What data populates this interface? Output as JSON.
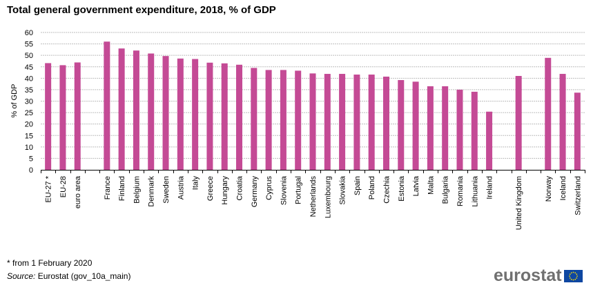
{
  "chart_data": {
    "type": "bar",
    "title": "Total general government expenditure, 2018, % of GDP",
    "xlabel": "",
    "ylabel": "% of GDP",
    "ylim": [
      0,
      60
    ],
    "yticks": [
      0,
      5,
      10,
      15,
      20,
      25,
      30,
      35,
      40,
      45,
      50,
      55,
      60
    ],
    "grid": true,
    "bar_color": "#C44A95",
    "categories": [
      "EU-27 *",
      "EU-28",
      "euro area",
      "",
      "France",
      "Finland",
      "Belgium",
      "Denmark",
      "Sweden",
      "Austria",
      "Italy",
      "Greece",
      "Hungary",
      "Croatia",
      "Germany",
      "Cyprus",
      "Slovenia",
      "Portugal",
      "Netherlands",
      "Luxembourg",
      "Slovakia",
      "Spain",
      "Poland",
      "Czechia",
      "Estonia",
      "Latvia",
      "Malta",
      "Bulgaria",
      "Romania",
      "Lithuania",
      "Ireland",
      "",
      "United Kingdom",
      "",
      "Norway",
      "Iceland",
      "Switzerland"
    ],
    "values": [
      46.6,
      45.7,
      46.9,
      null,
      56.0,
      53.0,
      52.1,
      50.8,
      49.7,
      48.6,
      48.4,
      46.8,
      46.5,
      45.9,
      44.5,
      43.6,
      43.6,
      43.3,
      42.1,
      41.9,
      41.9,
      41.6,
      41.6,
      40.7,
      39.2,
      38.5,
      36.5,
      36.5,
      35.0,
      34.1,
      25.4,
      null,
      41.0,
      null,
      48.9,
      41.9,
      33.7
    ]
  },
  "footer": {
    "footnote": "* from 1 February 2020",
    "source_label": "Source:",
    "source_text": " Eurostat (gov_10a_main)"
  },
  "logo": {
    "text": "eurostat",
    "flag_color": "#0E47A1",
    "star_color": "#FFDD00"
  }
}
